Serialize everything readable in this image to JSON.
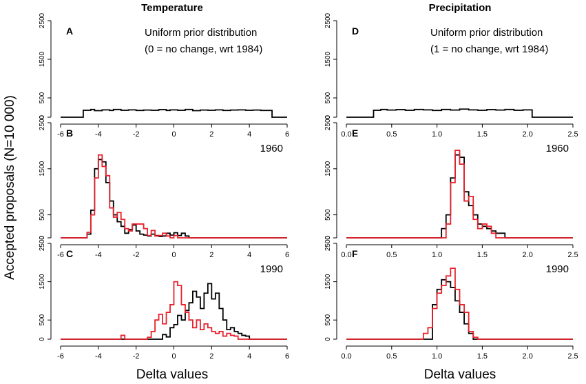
{
  "figure": {
    "ylabel": "Accepted proposals (N=10 000)",
    "xlabel_left": "Delta values",
    "xlabel_right": "Delta values",
    "col_titles": [
      "Temperature",
      "Precipitation"
    ],
    "colors": {
      "black": "#000000",
      "red": "#e8202a"
    }
  },
  "chart_data": [
    {
      "panel": "A",
      "type": "histogram",
      "column": "Temperature",
      "annotation_lines": [
        "Uniform prior distribution",
        "(0 = no change, wrt 1984)"
      ],
      "year": "",
      "xlim": [
        -6,
        6
      ],
      "ylim": [
        0,
        2500
      ],
      "xticks": [
        -6,
        -4,
        -2,
        0,
        2,
        4,
        6
      ],
      "yticks": [
        0,
        500,
        1500,
        2500
      ],
      "series": [
        {
          "name": "prior",
          "color": "#000000",
          "edges": [
            -4.8,
            -4.4,
            -4.2,
            -3.8,
            -3.4,
            -3.2,
            -2.8,
            -2.4,
            -2.0,
            -1.6,
            -1.2,
            -0.8,
            -0.4,
            -0.2,
            0.2,
            0.6,
            1.0,
            1.4,
            1.8,
            2.2,
            2.6,
            3.0,
            3.4,
            3.8,
            4.2,
            4.6,
            5.2
          ],
          "values": [
            180,
            200,
            170,
            190,
            175,
            200,
            180,
            190,
            175,
            185,
            180,
            195,
            175,
            190,
            180,
            200,
            170,
            185,
            180,
            190,
            175,
            185,
            190,
            180,
            185,
            175
          ]
        }
      ]
    },
    {
      "panel": "B",
      "type": "histogram",
      "column": "Temperature",
      "annotation_lines": [],
      "year": "1960",
      "xlim": [
        -6,
        6
      ],
      "ylim": [
        0,
        2500
      ],
      "xticks": [
        -6,
        -4,
        -2,
        0,
        2,
        4,
        6
      ],
      "yticks": [
        0,
        500,
        1500,
        2500
      ],
      "series": [
        {
          "name": "black",
          "color": "#000000",
          "edges": [
            -4.6,
            -4.4,
            -4.2,
            -4.0,
            -3.8,
            -3.6,
            -3.4,
            -3.2,
            -3.0,
            -2.8,
            -2.6,
            -2.4,
            -2.2,
            -2.0,
            -1.8,
            -1.6,
            -1.4,
            -1.2,
            -1.0,
            -0.8,
            -0.6,
            -0.4,
            -0.2,
            0.0,
            0.2,
            0.4,
            0.6,
            0.8
          ],
          "values": [
            80,
            600,
            1500,
            1700,
            1650,
            1200,
            800,
            500,
            350,
            250,
            100,
            180,
            280,
            150,
            80,
            60,
            40,
            80,
            50,
            30,
            40,
            100,
            60,
            110,
            50,
            100,
            40
          ]
        },
        {
          "name": "red",
          "color": "#e8202a",
          "edges": [
            -4.6,
            -4.4,
            -4.2,
            -4.0,
            -3.8,
            -3.6,
            -3.4,
            -3.2,
            -3.0,
            -2.8,
            -2.6,
            -2.4,
            -2.2,
            -2.0,
            -1.8,
            -1.6,
            -1.4,
            -1.2,
            -1.0,
            -0.8,
            -0.6,
            -0.4,
            -0.2,
            0.0,
            0.2,
            0.4
          ],
          "values": [
            120,
            500,
            1300,
            1800,
            1550,
            1350,
            650,
            450,
            550,
            400,
            200,
            150,
            300,
            300,
            300,
            200,
            50,
            160,
            40,
            50,
            100,
            40,
            0,
            50,
            0
          ]
        }
      ]
    },
    {
      "panel": "C",
      "type": "histogram",
      "column": "Temperature",
      "annotation_lines": [],
      "year": "1990",
      "xlim": [
        -6,
        6
      ],
      "ylim": [
        0,
        2500
      ],
      "xticks": [
        -6,
        -4,
        -2,
        0,
        2,
        4,
        6
      ],
      "yticks": [
        0,
        500,
        1500,
        2500
      ],
      "series": [
        {
          "name": "black",
          "color": "#000000",
          "edges": [
            -0.6,
            -0.4,
            -0.2,
            0.0,
            0.2,
            0.4,
            0.6,
            0.8,
            1.0,
            1.2,
            1.4,
            1.6,
            1.8,
            2.0,
            2.2,
            2.4,
            2.6,
            2.8,
            3.0,
            3.2,
            3.4,
            3.6,
            3.8,
            4.0
          ],
          "values": [
            120,
            60,
            300,
            380,
            620,
            500,
            750,
            950,
            1250,
            1100,
            800,
            1200,
            1450,
            1050,
            1200,
            800,
            500,
            250,
            300,
            200,
            150,
            100,
            80
          ]
        },
        {
          "name": "red",
          "color": "#e8202a",
          "edges": [
            -2.8,
            -2.6,
            -1.4,
            -1.2,
            -1.0,
            -0.8,
            -0.6,
            -0.4,
            -0.2,
            0.0,
            0.2,
            0.4,
            0.6,
            0.8,
            1.0,
            1.2,
            1.4,
            1.6,
            1.8,
            2.0,
            2.2,
            2.4,
            2.6,
            2.8,
            3.0,
            3.2,
            3.4
          ],
          "values": [
            100,
            0,
            50,
            200,
            500,
            650,
            400,
            700,
            900,
            1500,
            1400,
            900,
            700,
            500,
            300,
            500,
            250,
            400,
            300,
            200,
            150,
            200,
            80,
            150,
            100,
            80
          ]
        }
      ]
    },
    {
      "panel": "D",
      "type": "histogram",
      "column": "Precipitation",
      "annotation_lines": [
        "Uniform prior distribution",
        "(1 = no change, wrt 1984)"
      ],
      "year": "",
      "xlim": [
        0.0,
        2.5
      ],
      "ylim": [
        0,
        2500
      ],
      "xticks": [
        0.0,
        0.5,
        1.0,
        1.5,
        2.0,
        2.5
      ],
      "yticks": [
        0,
        500,
        1500,
        2500
      ],
      "series": [
        {
          "name": "prior",
          "color": "#000000",
          "edges": [
            0.3,
            0.38,
            0.45,
            0.55,
            0.65,
            0.75,
            0.85,
            0.95,
            1.05,
            1.15,
            1.25,
            1.35,
            1.45,
            1.55,
            1.65,
            1.75,
            1.85,
            1.95,
            2.05
          ],
          "values": [
            180,
            200,
            185,
            195,
            180,
            200,
            190,
            175,
            200,
            185,
            210,
            190,
            180,
            195,
            185,
            200,
            180,
            190
          ]
        }
      ]
    },
    {
      "panel": "E",
      "type": "histogram",
      "column": "Precipitation",
      "annotation_lines": [],
      "year": "1960",
      "xlim": [
        0.0,
        2.5
      ],
      "ylim": [
        0,
        2500
      ],
      "xticks": [
        0.0,
        0.5,
        1.0,
        1.5,
        2.0,
        2.5
      ],
      "yticks": [
        0,
        500,
        1500,
        2500
      ],
      "series": [
        {
          "name": "black",
          "color": "#000000",
          "edges": [
            1.05,
            1.1,
            1.15,
            1.2,
            1.25,
            1.3,
            1.35,
            1.4,
            1.45,
            1.5,
            1.55,
            1.6,
            1.65,
            1.7,
            1.75
          ],
          "values": [
            200,
            500,
            1300,
            1800,
            1750,
            1000,
            700,
            500,
            300,
            250,
            200,
            150,
            100,
            100
          ]
        },
        {
          "name": "red",
          "color": "#e8202a",
          "edges": [
            1.1,
            1.15,
            1.2,
            1.25,
            1.3,
            1.35,
            1.4,
            1.45,
            1.5,
            1.55,
            1.6,
            1.65
          ],
          "values": [
            300,
            1200,
            1900,
            1600,
            800,
            900,
            400,
            200,
            300,
            250,
            100
          ]
        }
      ]
    },
    {
      "panel": "F",
      "type": "histogram",
      "column": "Precipitation",
      "annotation_lines": [],
      "year": "1990",
      "xlim": [
        0.0,
        2.5
      ],
      "ylim": [
        0,
        2500
      ],
      "xticks": [
        0.0,
        0.5,
        1.0,
        1.5,
        2.0,
        2.5
      ],
      "yticks": [
        0,
        500,
        1500,
        2500
      ],
      "series": [
        {
          "name": "black",
          "color": "#000000",
          "edges": [
            0.95,
            1.0,
            1.05,
            1.1,
            1.15,
            1.2,
            1.25,
            1.3,
            1.35,
            1.4
          ],
          "values": [
            900,
            1300,
            1550,
            1500,
            1350,
            1000,
            700,
            400,
            150
          ]
        },
        {
          "name": "red",
          "color": "#e8202a",
          "edges": [
            0.85,
            0.9,
            0.95,
            1.0,
            1.05,
            1.1,
            1.15,
            1.2,
            1.25,
            1.3,
            1.35,
            1.4,
            1.45
          ],
          "values": [
            150,
            300,
            800,
            1200,
            1400,
            1650,
            1850,
            1300,
            900,
            700,
            200,
            50
          ]
        }
      ]
    }
  ]
}
